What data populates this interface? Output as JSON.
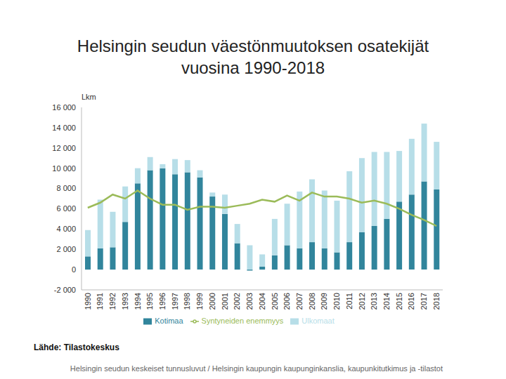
{
  "chart_data": {
    "type": "bar",
    "title": "Helsingin seudun väestönmuutoksen osatekijät vuosina 1990-2018",
    "ylabel": "Lkm",
    "source": "Lähde: Tilastokeskus",
    "footer": "Helsingin seudun keskeiset tunnusluvut / Helsingin kaupungin kaupunginkanslia, kaupunkitutkimus ja -tilastot",
    "categories": [
      "1990",
      "1991",
      "1992",
      "1993",
      "1994",
      "1995",
      "1996",
      "1997",
      "1998",
      "1999",
      "2000",
      "2001",
      "2002",
      "2003",
      "2004",
      "2005",
      "2006",
      "2007",
      "2008",
      "2009",
      "2010",
      "2011",
      "2012",
      "2013",
      "2014",
      "2015",
      "2016",
      "2017",
      "2018"
    ],
    "series": [
      {
        "name": "Kotimaa",
        "type": "bar",
        "color": "#31859c",
        "values": [
          1300,
          2100,
          2200,
          4700,
          8500,
          9800,
          10000,
          9400,
          9600,
          9100,
          7200,
          5500,
          2600,
          -100,
          300,
          1400,
          2400,
          2100,
          2700,
          2100,
          1700,
          2700,
          3700,
          4300,
          5000,
          6700,
          7400,
          8700,
          7900
        ]
      },
      {
        "name": "Ulkomaat",
        "type": "bar",
        "color": "#b7dee8",
        "values": [
          2600,
          4800,
          3500,
          3500,
          1500,
          1300,
          400,
          1500,
          1200,
          700,
          400,
          1900,
          1900,
          2400,
          1200,
          3600,
          4100,
          5600,
          6200,
          5700,
          5100,
          7000,
          7300,
          7300,
          6600,
          5000,
          5500,
          5700,
          4700
        ]
      },
      {
        "name": "Syntyneiden enemmyys",
        "type": "line",
        "color": "#9bbb59",
        "values": [
          6100,
          6600,
          7400,
          7000,
          7800,
          7000,
          6400,
          6400,
          5900,
          6200,
          6200,
          6100,
          6300,
          6500,
          6900,
          6700,
          7300,
          6800,
          7600,
          7200,
          7200,
          7000,
          6600,
          6800,
          6500,
          6000,
          5400,
          4900,
          4300
        ]
      }
    ],
    "stacked": true,
    "grid": false,
    "legend": "bottom",
    "ylim": [
      -2000,
      16000
    ],
    "yticks": [
      {
        "value": -2000,
        "label": "-2 000"
      },
      0,
      {
        "value": 2000,
        "label": "2 000"
      },
      {
        "value": 4000,
        "label": "4 000"
      },
      {
        "value": 6000,
        "label": "6 000"
      },
      {
        "value": 8000,
        "label": "8 000"
      },
      {
        "value": 10000,
        "label": "10 000"
      },
      {
        "value": 12000,
        "label": "12 000"
      },
      {
        "value": 14000,
        "label": "14 000"
      },
      {
        "value": 16000,
        "label": "16 000"
      }
    ]
  }
}
